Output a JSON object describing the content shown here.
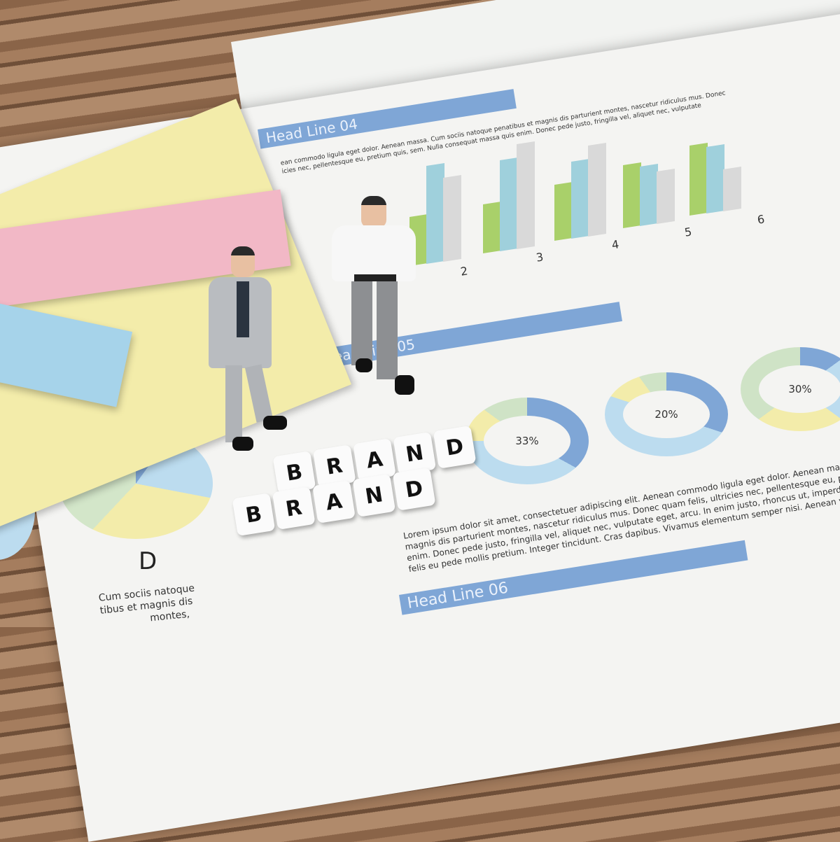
{
  "document": {
    "headlines": [
      "Head Line 04",
      "Head Line 05",
      "Head Line 06"
    ],
    "headline04_text": [
      "ean commodo ligula eget dolor. Aenean massa. Cum sociis natoque penatibus et magnis dis parturient montes, nascetur ridiculus mus. Donec",
      "icies nec, pellentesque eu, pretium quis, sem. Nulla consequat massa quis enim. Donec pede justo, fringilla vel, aliquet nec, vulputate"
    ],
    "bar_chart_labels": [
      "2",
      "3",
      "4",
      "5",
      "6"
    ],
    "donut_labels": [
      "33%",
      "20%",
      "30%"
    ],
    "paragraph": [
      "Lorem ipsum dolor sit amet, consectetuer adipiscing elit. Aenean commodo ligula eget dolor. Aenean massa",
      "magnis dis parturient montes, nascetur ridiculus mus. Donec quam felis, ultricies nec, pellentesque eu, pretium",
      "enim. Donec pede justo, fringilla vel, aliquet nec, vulputate eget, arcu. In enim justo, rhoncus ut, imperdiet",
      "felis eu pede mollis pretium. Integer tincidunt. Cras dapibus. Vivamus elementum semper nisi. Aenean vu"
    ],
    "pie_label": "D",
    "pie_caption": [
      "Cum sociis natoque",
      "tibus et magnis dis",
      "montes,"
    ]
  },
  "cubes": {
    "top_word": [
      "B",
      "R",
      "A",
      "N",
      "D"
    ],
    "bottom_word": [
      "B",
      "R",
      "A",
      "N",
      "D"
    ]
  },
  "colors": {
    "blue": "#7fa6d6",
    "green": "#a9d06a",
    "teal": "#9fd0dc",
    "gray": "#d9d9d9",
    "yellow": "#f3ecaa",
    "pink": "#f2b8c6",
    "lightblue": "#a6d3ea"
  }
}
